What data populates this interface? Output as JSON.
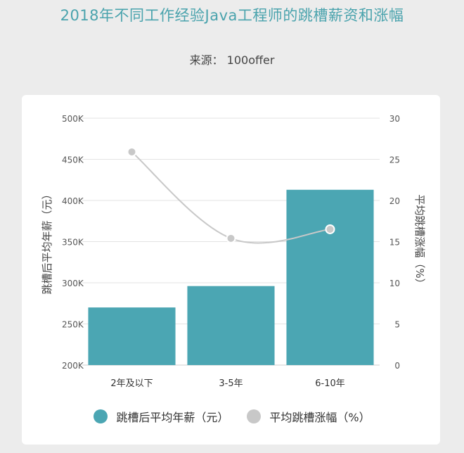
{
  "title": "2018年不同工作经验Java工程师的跳槽薪资和涨幅",
  "source": "来源：  100offer",
  "colors": {
    "bar": "#4ba6b3",
    "line": "#c8c8c8",
    "title": "#4aa3ad"
  },
  "chart_data": {
    "type": "bar",
    "categories": [
      "2年及以下",
      "3-5年",
      "6-10年"
    ],
    "series": [
      {
        "name": "跳槽后平均年薪（元）",
        "type": "bar",
        "axis": "left",
        "values": [
          270000,
          296000,
          413000
        ]
      },
      {
        "name": "平均跳槽涨幅（%）",
        "type": "line",
        "axis": "right",
        "values": [
          25.9,
          15.4,
          16.5
        ]
      }
    ],
    "ylabel": "跳槽后平均年薪（元）",
    "y2label": "平均跳槽涨幅（%）",
    "ylim": [
      200000,
      500000
    ],
    "y2lim": [
      0,
      30
    ],
    "yticks": [
      "200K",
      "250K",
      "300K",
      "350K",
      "400K",
      "450K",
      "500K"
    ],
    "y2ticks": [
      "0",
      "5",
      "10",
      "15",
      "20",
      "25",
      "30"
    ],
    "grid": true,
    "legend_position": "bottom"
  }
}
